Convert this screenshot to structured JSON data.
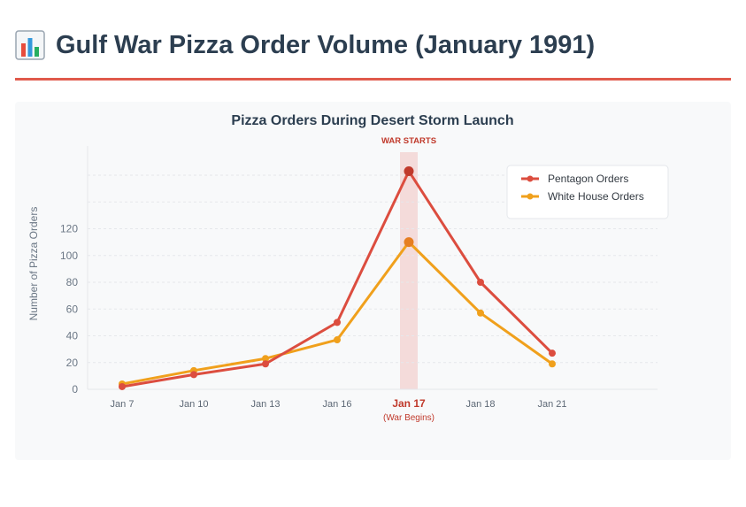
{
  "page": {
    "title": "Gulf War Pizza Order Volume (January 1991)",
    "icon": "bar-chart-icon"
  },
  "colors": {
    "title": "#2c3e50",
    "divider": "#e05a4c",
    "pentagon": "#dc4d3f",
    "white_house": "#f0a01c",
    "highlight": "#f3d6d3",
    "annotation": "#c0392b"
  },
  "chart_data": {
    "type": "line",
    "title": "Pizza Orders During Desert Storm Launch",
    "ylabel": "Number of Pizza Orders",
    "xlabel": "",
    "categories": [
      "Jan 7",
      "Jan 10",
      "Jan 13",
      "Jan 16",
      "Jan 17",
      "Jan 18",
      "Jan 21"
    ],
    "category_sublabels": [
      "",
      "",
      "",
      "",
      "(War Begins)",
      "",
      ""
    ],
    "highlight_category": "Jan 17",
    "annotation": "WAR STARTS",
    "yticks": [
      0,
      20,
      40,
      60,
      80,
      100,
      120
    ],
    "ylim": [
      0,
      160
    ],
    "grid": true,
    "legend_position": "top-right",
    "series": [
      {
        "name": "Pentagon Orders",
        "values": [
          2,
          11,
          19,
          50,
          163,
          80,
          27
        ]
      },
      {
        "name": "White House Orders",
        "values": [
          4,
          14,
          23,
          37,
          110,
          57,
          19
        ]
      }
    ]
  }
}
